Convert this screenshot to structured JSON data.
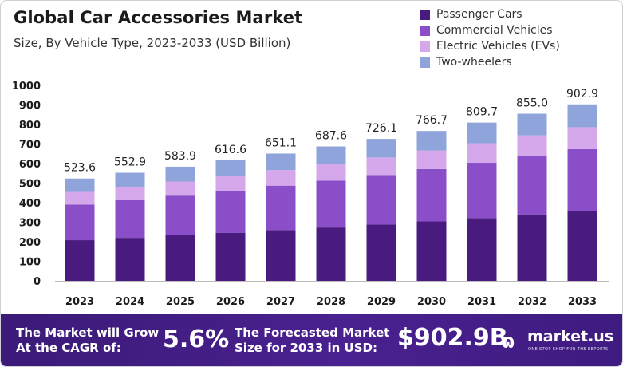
{
  "header": {
    "title": "Global Car Accessories Market",
    "subtitle": "Size, By Vehicle Type, 2023-2033 (USD Billion)"
  },
  "colors": {
    "passenger": "#4a1b7f",
    "commercial": "#8a4fc8",
    "ev": "#d4a8ea",
    "two_wheelers": "#8ea4da",
    "footer_bg": "#4a2190"
  },
  "chart_data": {
    "type": "bar",
    "stacked": true,
    "categories": [
      "2023",
      "2024",
      "2025",
      "2026",
      "2027",
      "2028",
      "2029",
      "2030",
      "2031",
      "2032",
      "2033"
    ],
    "series": [
      {
        "name": "Passenger Cars",
        "values": [
          208,
          220,
          233,
          245,
          260,
          273,
          288,
          304,
          321,
          340,
          359
        ]
      },
      {
        "name": "Commercial Vehicles",
        "values": [
          182,
          193,
          203,
          215,
          227,
          240,
          253,
          268,
          283,
          298,
          315
        ]
      },
      {
        "name": "Electric Vehicles (EVs)",
        "values": [
          65,
          68,
          72,
          76,
          80,
          85,
          90,
          95,
          100,
          106,
          112
        ]
      },
      {
        "name": "Two-wheelers",
        "values": [
          68.6,
          71.9,
          75.9,
          80.6,
          84.1,
          89.6,
          95.1,
          99.7,
          105.7,
          111.0,
          116.9
        ]
      }
    ],
    "totals": [
      "523.6",
      "552.9",
      "583.9",
      "616.6",
      "651.1",
      "687.6",
      "726.1",
      "766.7",
      "809.7",
      "855.0",
      "902.9"
    ],
    "y_ticks": [
      "0",
      "100",
      "200",
      "300",
      "400",
      "500",
      "600",
      "700",
      "800",
      "900",
      "1000"
    ],
    "ylim": [
      0,
      1000
    ],
    "grid": false,
    "legend": "top-right"
  },
  "footer": {
    "cagr_label_1": "The Market will Grow",
    "cagr_label_2": "At the CAGR of:",
    "cagr_value": "5.6%",
    "forecast_label_1": "The Forecasted Market",
    "forecast_label_2": "Size for 2033 in USD:",
    "forecast_value": "$902.9B",
    "brand": "market.us",
    "tagline": "ONE STOP SHOP FOR THE REPORTS"
  }
}
